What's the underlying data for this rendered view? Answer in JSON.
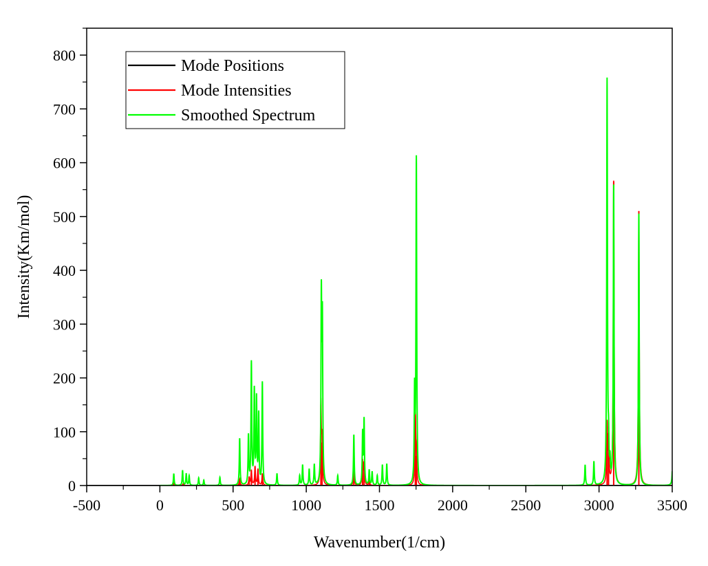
{
  "chart_data": {
    "type": "line",
    "title": "",
    "xlabel": "Wavenumber(1/cm)",
    "ylabel": "Intensity(Km/mol)",
    "xlim": [
      -500,
      3500
    ],
    "ylim": [
      0,
      850
    ],
    "x_ticks": [
      -500,
      0,
      500,
      1000,
      1500,
      2000,
      2500,
      3000,
      3500
    ],
    "y_ticks": [
      0,
      100,
      200,
      300,
      400,
      500,
      600,
      700,
      800
    ],
    "grid": false,
    "legend_position": "top-left",
    "legend": [
      "Mode Positions",
      "Mode Intensities",
      "Smoothed Spectrum"
    ],
    "series": [
      {
        "name": "Mode Positions",
        "color": "#000000",
        "style": "baseline",
        "x": [
          -500,
          3500
        ],
        "y": [
          0,
          0
        ]
      },
      {
        "name": "Mode Intensities",
        "color": "#ff0000",
        "style": "sticks",
        "x": [
          95,
          160,
          545,
          610,
          625,
          650,
          670,
          700,
          1100,
          1108,
          1325,
          1385,
          1395,
          1430,
          1745,
          1752,
          3055,
          3065,
          3100,
          3272
        ],
        "y": [
          5,
          4,
          12,
          15,
          28,
          35,
          30,
          22,
          150,
          80,
          30,
          45,
          40,
          10,
          130,
          55,
          110,
          80,
          565,
          510
        ]
      },
      {
        "name": "Smoothed Spectrum",
        "color": "#00ff00",
        "style": "lorentzian",
        "x": [
          95,
          155,
          180,
          200,
          265,
          300,
          410,
          545,
          605,
          625,
          645,
          660,
          675,
          700,
          800,
          955,
          975,
          1020,
          1055,
          1103,
          1110,
          1215,
          1325,
          1385,
          1395,
          1430,
          1450,
          1485,
          1520,
          1550,
          1740,
          1752,
          2905,
          2965,
          3055,
          3065,
          3075,
          3100,
          3272,
          3505
        ],
        "y": [
          22,
          28,
          22,
          18,
          14,
          10,
          15,
          87,
          90,
          225,
          172,
          157,
          128,
          190,
          22,
          18,
          38,
          30,
          38,
          338,
          290,
          18,
          94,
          95,
          119,
          28,
          25,
          18,
          38,
          40,
          165,
          604,
          38,
          44,
          750,
          60,
          35,
          555,
          505,
          100
        ]
      }
    ]
  }
}
